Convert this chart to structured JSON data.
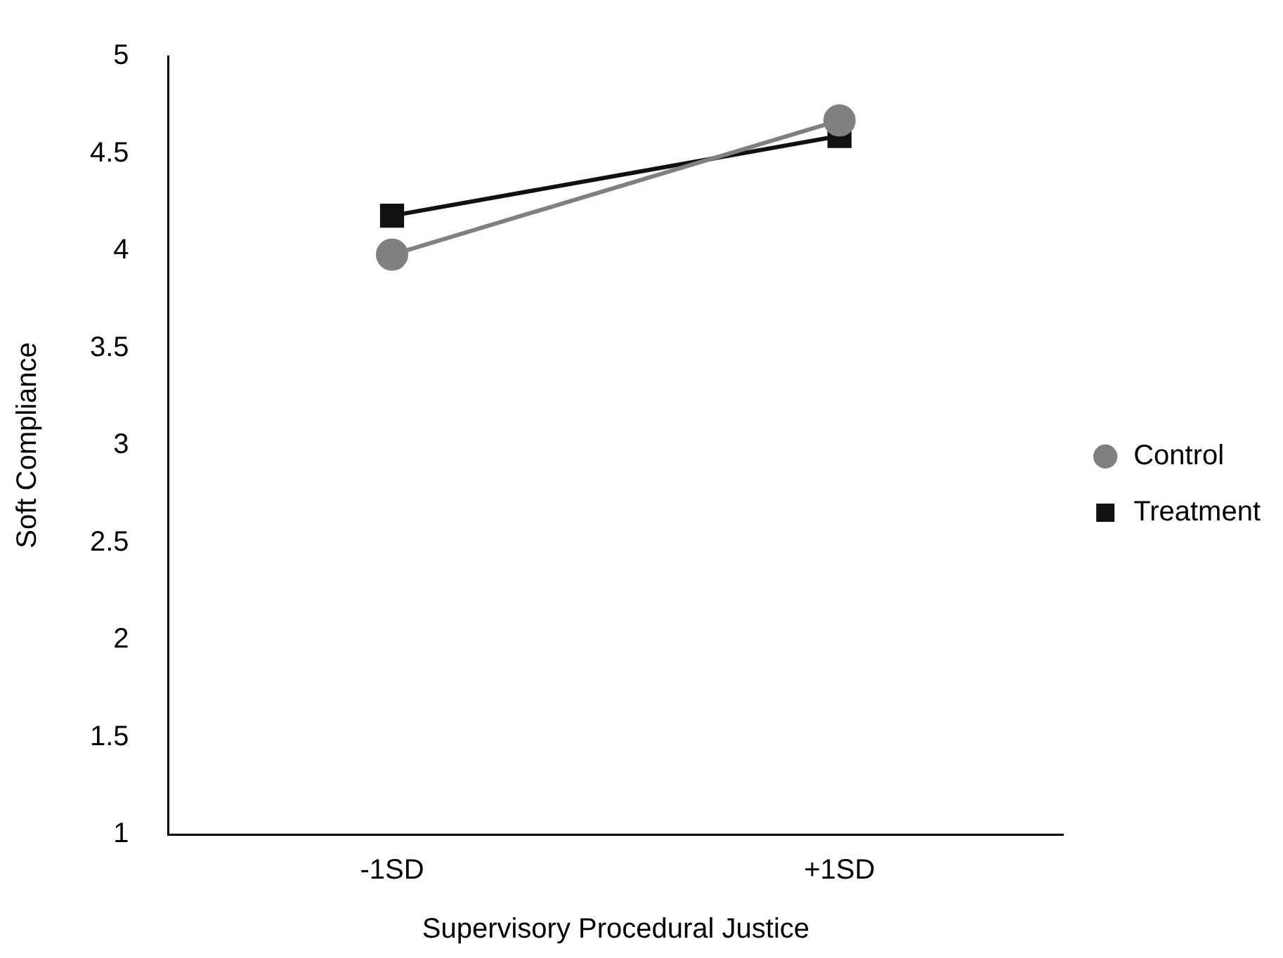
{
  "chart_data": {
    "type": "line",
    "xlabel": "Supervisory Procedural Justice",
    "ylabel": "Soft Compliance",
    "categories": [
      "-1SD",
      "+1SD"
    ],
    "series": [
      {
        "name": "Control",
        "color": "#808080",
        "values": [
          3.98,
          4.67
        ],
        "marker": "circle"
      },
      {
        "name": "Treatment",
        "color": "#111111",
        "values": [
          4.18,
          4.59
        ],
        "marker": "square"
      }
    ],
    "ylim": [
      1,
      5
    ],
    "yticks": [
      1,
      1.5,
      2,
      2.5,
      3,
      3.5,
      4,
      4.5,
      5
    ],
    "grid": false,
    "legend": "right",
    "line_style": "solid"
  }
}
